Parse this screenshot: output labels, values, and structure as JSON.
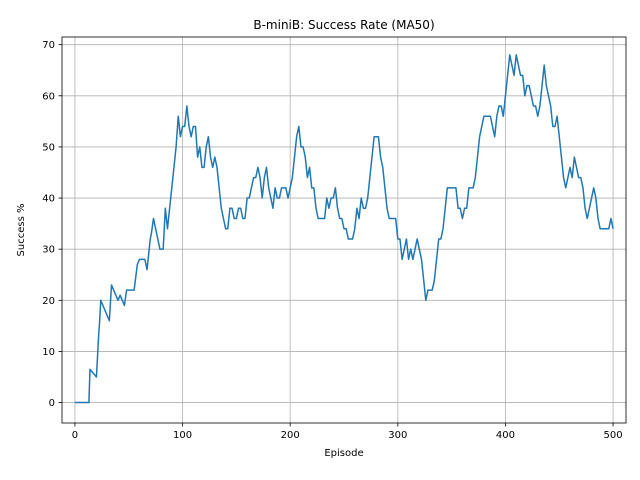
{
  "chart_data": {
    "type": "line",
    "title": "B-miniB: Success Rate (MA50)",
    "xlabel": "Episode",
    "ylabel": "Success %",
    "xlim": [
      -12,
      512
    ],
    "ylim": [
      -4,
      71.5
    ],
    "xticks": [
      0,
      100,
      200,
      300,
      400,
      500
    ],
    "yticks": [
      0,
      10,
      20,
      30,
      40,
      50,
      60,
      70
    ],
    "grid": true,
    "series": [
      {
        "color": "#1f77b4",
        "x": [
          0,
          5,
          10,
          13,
          14,
          16,
          18,
          20,
          22,
          23,
          24,
          26,
          28,
          30,
          32,
          34,
          36,
          38,
          40,
          42,
          44,
          46,
          48,
          50,
          52,
          55,
          58,
          60,
          62,
          65,
          67,
          69,
          70,
          71,
          73,
          75,
          77,
          79,
          80,
          82,
          84,
          86,
          88,
          90,
          92,
          94,
          96,
          97,
          98,
          100,
          102,
          104,
          106,
          108,
          110,
          112,
          114,
          116,
          118,
          120,
          122,
          124,
          126,
          128,
          130,
          132,
          134,
          136,
          138,
          140,
          142,
          144,
          146,
          148,
          150,
          152,
          154,
          156,
          158,
          160,
          162,
          164,
          166,
          168,
          170,
          172,
          174,
          176,
          178,
          180,
          182,
          184,
          186,
          188,
          190,
          192,
          194,
          196,
          198,
          200,
          202,
          204,
          206,
          208,
          210,
          212,
          214,
          216,
          218,
          220,
          222,
          224,
          226,
          228,
          230,
          232,
          234,
          236,
          238,
          240,
          242,
          244,
          246,
          248,
          250,
          252,
          254,
          256,
          258,
          260,
          262,
          264,
          266,
          268,
          270,
          272,
          274,
          276,
          278,
          280,
          282,
          284,
          286,
          288,
          290,
          292,
          294,
          296,
          298,
          300,
          302,
          304,
          306,
          308,
          310,
          312,
          314,
          316,
          318,
          320,
          322,
          324,
          326,
          328,
          330,
          332,
          334,
          336,
          338,
          340,
          342,
          344,
          346,
          348,
          350,
          352,
          354,
          356,
          358,
          360,
          362,
          364,
          366,
          368,
          370,
          372,
          374,
          376,
          378,
          380,
          382,
          384,
          386,
          388,
          390,
          392,
          394,
          396,
          398,
          400,
          402,
          404,
          406,
          408,
          410,
          412,
          414,
          416,
          418,
          420,
          422,
          424,
          426,
          428,
          430,
          432,
          434,
          436,
          438,
          440,
          442,
          444,
          446,
          448,
          450,
          452,
          454,
          456,
          458,
          460,
          462,
          464,
          466,
          468,
          470,
          472,
          474,
          476,
          478,
          480,
          482,
          484,
          486,
          488,
          490,
          492,
          494,
          496,
          498,
          500
        ],
        "y": [
          0,
          0,
          0,
          0,
          6.5,
          6,
          5.5,
          5,
          13,
          16,
          20,
          19,
          18,
          17,
          16,
          23,
          22,
          21,
          20,
          21,
          20,
          19,
          22,
          22,
          22,
          22,
          27,
          28,
          28,
          28,
          26,
          30,
          32,
          33,
          36,
          34,
          32,
          30,
          30,
          30,
          38,
          34,
          38,
          42,
          46,
          50,
          56,
          54,
          52,
          54,
          54,
          58,
          54,
          52,
          54,
          54,
          48,
          50,
          46,
          46,
          50,
          52,
          48,
          46,
          48,
          46,
          42,
          38,
          36,
          34,
          34,
          38,
          38,
          36,
          36,
          38,
          38,
          36,
          36,
          40,
          40,
          42,
          44,
          44,
          46,
          44,
          40,
          44,
          46,
          42,
          40,
          38,
          42,
          40,
          40,
          42,
          42,
          42,
          40,
          42,
          44,
          48,
          52,
          54,
          50,
          50,
          48,
          44,
          46,
          42,
          42,
          38,
          36,
          36,
          36,
          36,
          40,
          38,
          40,
          40,
          42,
          38,
          36,
          36,
          34,
          34,
          32,
          32,
          32,
          34,
          38,
          36,
          40,
          38,
          38,
          40,
          44,
          48,
          52,
          52,
          52,
          48,
          46,
          42,
          38,
          36,
          36,
          36,
          36,
          32,
          32,
          28,
          30,
          32,
          28,
          30,
          28,
          30,
          32,
          30,
          28,
          24,
          20,
          22,
          22,
          22,
          24,
          28,
          32,
          32,
          34,
          38,
          42,
          42,
          42,
          42,
          42,
          38,
          38,
          36,
          38,
          38,
          42,
          42,
          42,
          44,
          48,
          52,
          54,
          56,
          56,
          56,
          56,
          54,
          52,
          56,
          58,
          58,
          56,
          60,
          64,
          68,
          66,
          64,
          68,
          66,
          64,
          64,
          60,
          62,
          62,
          60,
          58,
          58,
          56,
          58,
          62,
          66,
          62,
          60,
          58,
          54,
          54,
          56,
          52,
          48,
          44,
          42,
          44,
          46,
          44,
          48,
          46,
          44,
          44,
          42,
          38,
          36,
          38,
          40,
          42,
          40,
          36,
          34,
          34,
          34,
          34,
          34,
          36,
          34
        ]
      }
    ]
  }
}
